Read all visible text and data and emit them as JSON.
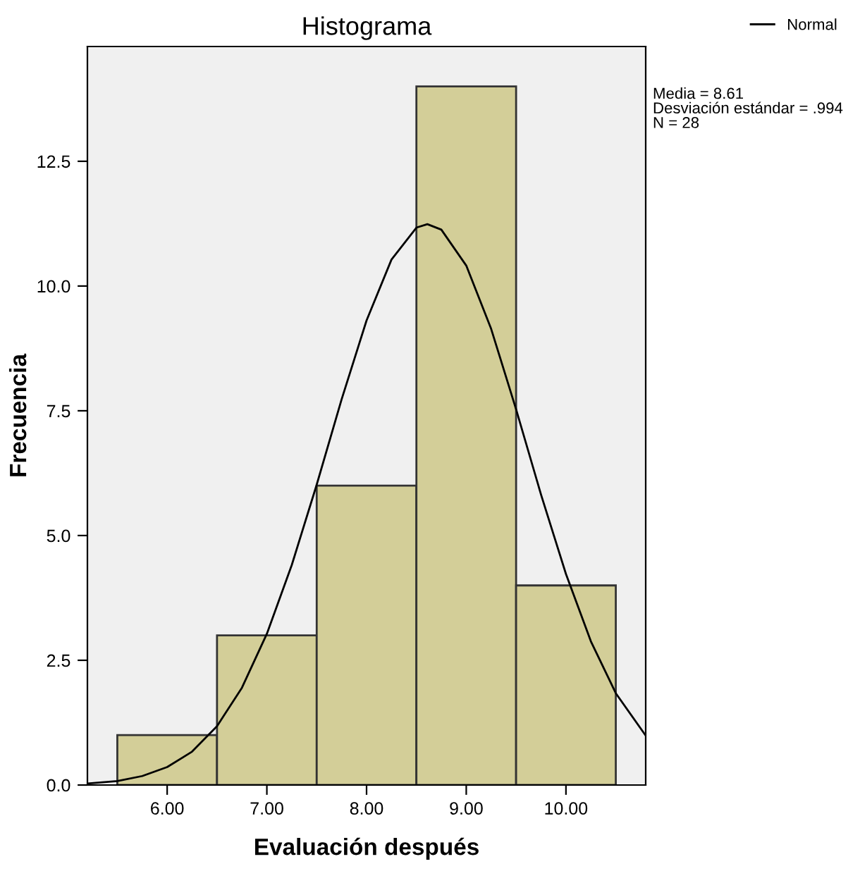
{
  "chart_data": {
    "type": "histogram",
    "title": "Histograma",
    "xlabel": "Evaluación después",
    "ylabel": "Frecuencia",
    "bins": [
      5.5,
      6.5,
      7.5,
      8.5,
      9.5,
      10.5
    ],
    "values": [
      1,
      3,
      6,
      14,
      4
    ],
    "color": "#d3ce98",
    "series": [
      {
        "name": "Normal",
        "type": "line",
        "color": "#000000",
        "x": [
          5.2,
          5.5,
          5.75,
          6.0,
          6.25,
          6.5,
          6.75,
          7.0,
          7.25,
          7.5,
          7.75,
          8.0,
          8.25,
          8.5,
          8.61,
          8.75,
          9.0,
          9.25,
          9.5,
          9.75,
          10.0,
          10.25,
          10.5,
          10.8
        ],
        "values": [
          0.03,
          0.08,
          0.18,
          0.36,
          0.67,
          1.18,
          1.95,
          3.03,
          4.41,
          6.02,
          7.73,
          9.31,
          10.53,
          11.17,
          11.24,
          11.13,
          10.41,
          9.14,
          7.53,
          5.82,
          4.23,
          2.88,
          1.84,
          0.99
        ]
      }
    ],
    "xlim": [
      5.2,
      10.8
    ],
    "ylim": [
      0,
      14.8
    ],
    "xticks": [
      {
        "value": 6,
        "label": "6.00"
      },
      {
        "value": 7,
        "label": "7.00"
      },
      {
        "value": 8,
        "label": "8.00"
      },
      {
        "value": 9,
        "label": "9.00"
      },
      {
        "value": 10,
        "label": "10.00"
      }
    ],
    "yticks": [
      {
        "value": 0,
        "label": "0.0"
      },
      2.5,
      {
        "value": 5,
        "label": "5.0"
      },
      7.5,
      {
        "value": 10,
        "label": "10.0"
      },
      12.5
    ],
    "annotations": [
      "Media = 8.61\nDesviación estándar = .994\nN = 28"
    ],
    "legend": "top right",
    "grid": false
  }
}
